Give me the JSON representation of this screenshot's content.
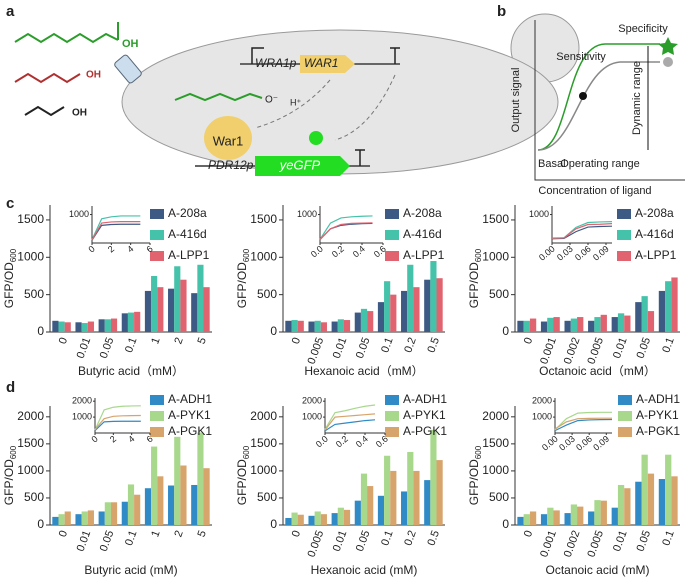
{
  "panels": {
    "a": "a",
    "b": "b",
    "c": "c",
    "d": "d"
  },
  "diagram_a": {
    "oh": [
      "OH",
      "OH",
      "OH"
    ],
    "wra1p": "WRA1p",
    "war1_gene": "WAR1",
    "war1_protein": "War1",
    "pdr12p": "PDR12p",
    "yegfp": "yeGFP",
    "h": "H⁺",
    "o_minus": "O⁻"
  },
  "diagram_b": {
    "y_label": "Output signal",
    "x_label": "Concentration of ligand",
    "sensitivity": "Sensitivity",
    "specificity": "Specificity",
    "dynamic_range": "Dynamic range",
    "basal": "Basal",
    "operating_range": "Operating range"
  },
  "chart_data": [
    {
      "type": "bar",
      "x_label": "Butyric acid（mM）",
      "y_label": "GFP/OD",
      "y_label_sub": "600",
      "categories": [
        "0",
        "0.01",
        "0.05",
        "0.1",
        "1",
        "2",
        "5"
      ],
      "series": [
        {
          "name": "A-208a",
          "color": "#3d5a85",
          "values": [
            150,
            130,
            170,
            250,
            550,
            580,
            520
          ]
        },
        {
          "name": "A-416d",
          "color": "#45c2aa",
          "values": [
            140,
            120,
            170,
            260,
            750,
            880,
            900
          ]
        },
        {
          "name": "A-LPP1",
          "color": "#e0636f",
          "values": [
            130,
            140,
            180,
            270,
            600,
            700,
            600
          ]
        }
      ],
      "ylim": [
        0,
        1700
      ],
      "yticks": [
        0,
        500,
        1000,
        1500
      ],
      "inset": {
        "type": "line",
        "x": [
          0,
          1,
          2,
          3,
          4,
          5
        ],
        "xlim": [
          0,
          6
        ],
        "xticks": [
          0,
          2,
          4,
          6
        ],
        "ylim": [
          0,
          1300
        ],
        "yticks": [
          1000
        ],
        "series": [
          {
            "color": "#3d5a85",
            "values": [
              100,
              620,
              650,
              660,
              660,
              660
            ]
          },
          {
            "color": "#45c2aa",
            "values": [
              120,
              850,
              920,
              950,
              950,
              950
            ]
          },
          {
            "color": "#e0636f",
            "values": [
              110,
              700,
              740,
              750,
              750,
              750
            ]
          }
        ]
      }
    },
    {
      "type": "bar",
      "x_label": "Hexanoic acid（mM）",
      "y_label": "GFP/OD",
      "y_label_sub": "600",
      "categories": [
        "0",
        "0.005",
        "0.01",
        "0.05",
        "0.1",
        "0.2",
        "0.5"
      ],
      "series": [
        {
          "name": "A-208a",
          "color": "#3d5a85",
          "values": [
            150,
            140,
            140,
            260,
            400,
            550,
            700
          ]
        },
        {
          "name": "A-416d",
          "color": "#45c2aa",
          "values": [
            160,
            150,
            170,
            310,
            680,
            900,
            950
          ]
        },
        {
          "name": "A-LPP1",
          "color": "#e0636f",
          "values": [
            150,
            130,
            160,
            280,
            500,
            600,
            720
          ]
        }
      ],
      "ylim": [
        0,
        1700
      ],
      "yticks": [
        0,
        500,
        1000,
        1500
      ],
      "inset": {
        "type": "line",
        "x": [
          0,
          0.1,
          0.2,
          0.3,
          0.4,
          0.5
        ],
        "xlim": [
          0,
          0.6
        ],
        "xticks": [
          {
            "value": 0,
            "label": "0.0"
          },
          0.2,
          0.4,
          0.6
        ],
        "ylim": [
          0,
          1300
        ],
        "yticks": [
          1000
        ],
        "series": [
          {
            "color": "#3d5a85",
            "values": [
              120,
              500,
              620,
              660,
              680,
              690
            ]
          },
          {
            "color": "#45c2aa",
            "values": [
              130,
              700,
              880,
              920,
              940,
              950
            ]
          },
          {
            "color": "#e0636f",
            "values": [
              120,
              500,
              650,
              690,
              700,
              710
            ]
          }
        ]
      }
    },
    {
      "type": "bar",
      "x_label": "Octanoic acid（mM）",
      "y_label": "GFP/OD",
      "y_label_sub": "600",
      "categories": [
        "0",
        "0.001",
        "0.002",
        "0.005",
        "0.01",
        "0.05",
        "0.1"
      ],
      "series": [
        {
          "name": "A-208a",
          "color": "#3d5a85",
          "values": [
            150,
            140,
            150,
            150,
            200,
            400,
            550
          ]
        },
        {
          "name": "A-416d",
          "color": "#45c2aa",
          "values": [
            150,
            190,
            180,
            200,
            250,
            480,
            680
          ]
        },
        {
          "name": "A-LPP1",
          "color": "#e0636f",
          "values": [
            180,
            200,
            200,
            230,
            220,
            280,
            730
          ]
        }
      ],
      "ylim": [
        0,
        1700
      ],
      "yticks": [
        0,
        500,
        1000,
        1500
      ],
      "inset": {
        "type": "line",
        "x": [
          0,
          0.02,
          0.04,
          0.06,
          0.08,
          0.1
        ],
        "xlim": [
          0,
          0.1
        ],
        "xticks": [
          {
            "value": 0,
            "label": "0.00"
          },
          0.03,
          0.06,
          0.09
        ],
        "ylim": [
          0,
          1300
        ],
        "yticks": [
          1000
        ],
        "series": [
          {
            "color": "#3d5a85",
            "values": [
              150,
              160,
              400,
              560,
              580,
              590
            ]
          },
          {
            "color": "#45c2aa",
            "values": [
              160,
              180,
              550,
              720,
              740,
              750
            ]
          },
          {
            "color": "#e0636f",
            "values": [
              170,
              180,
              500,
              650,
              660,
              680
            ]
          }
        ]
      }
    },
    {
      "type": "bar",
      "x_label": "Butyric acid (mM)",
      "y_label": "GFP/OD",
      "y_label_sub": "600",
      "categories": [
        "0",
        "0.01",
        "0.05",
        "0.1",
        "1",
        "2",
        "5"
      ],
      "series": [
        {
          "name": "A-ADH1",
          "color": "#2f8ac6",
          "values": [
            150,
            200,
            250,
            430,
            680,
            730,
            740
          ]
        },
        {
          "name": "A-PYK1",
          "color": "#a8d88c",
          "values": [
            200,
            250,
            420,
            750,
            1450,
            1630,
            1710
          ]
        },
        {
          "name": "A-PGK1",
          "color": "#d7a46c",
          "values": [
            250,
            270,
            420,
            560,
            900,
            1100,
            1050
          ]
        }
      ],
      "ylim": [
        0,
        2200
      ],
      "yticks": [
        0,
        500,
        1000,
        1500,
        2000
      ],
      "inset": {
        "type": "line",
        "x": [
          0,
          1,
          2,
          3,
          4,
          5
        ],
        "xlim": [
          0,
          6
        ],
        "xticks": [
          0,
          2,
          4,
          6
        ],
        "ylim": [
          0,
          2200
        ],
        "yticks": [
          1000,
          2000
        ],
        "series": [
          {
            "color": "#2f8ac6",
            "values": [
              150,
              700,
              730,
              740,
              740,
              740
            ]
          },
          {
            "color": "#a8d88c",
            "values": [
              200,
              1450,
              1620,
              1680,
              1700,
              1710
            ]
          },
          {
            "color": "#d7a46c",
            "values": [
              220,
              900,
              1050,
              1080,
              1090,
              1100
            ]
          }
        ]
      }
    },
    {
      "type": "bar",
      "x_label": "Hexanoic acid (mM)",
      "y_label": "GFP/OD",
      "y_label_sub": "600",
      "categories": [
        "0",
        "0.005",
        "0.01",
        "0.05",
        "0.1",
        "0.2",
        "0.5"
      ],
      "series": [
        {
          "name": "A-ADH1",
          "color": "#2f8ac6",
          "values": [
            130,
            170,
            220,
            450,
            540,
            620,
            830
          ]
        },
        {
          "name": "A-PYK1",
          "color": "#a8d88c",
          "values": [
            230,
            250,
            320,
            950,
            1280,
            1350,
            1760
          ]
        },
        {
          "name": "A-PGK1",
          "color": "#d7a46c",
          "values": [
            190,
            200,
            280,
            720,
            1000,
            1000,
            1200
          ]
        }
      ],
      "ylim": [
        0,
        2200
      ],
      "yticks": [
        0,
        500,
        1000,
        1500,
        2000
      ],
      "inset": {
        "type": "line",
        "x": [
          0,
          0.1,
          0.2,
          0.3,
          0.4,
          0.5
        ],
        "xlim": [
          0,
          0.6
        ],
        "xticks": [
          {
            "value": 0,
            "label": "0.0"
          },
          0.2,
          0.4,
          0.6
        ],
        "ylim": [
          0,
          2200
        ],
        "yticks": [
          1000,
          2000
        ],
        "series": [
          {
            "color": "#2f8ac6",
            "values": [
              130,
              540,
              620,
              700,
              780,
              830
            ]
          },
          {
            "color": "#a8d88c",
            "values": [
              230,
              1280,
              1400,
              1550,
              1680,
              1760
            ]
          },
          {
            "color": "#d7a46c",
            "values": [
              190,
              1000,
              1050,
              1100,
              1150,
              1200
            ]
          }
        ]
      }
    },
    {
      "type": "bar",
      "x_label": "Octanoic acid (mM)",
      "y_label": "GFP/OD",
      "y_label_sub": "600",
      "categories": [
        "0",
        "0.001",
        "0.002",
        "0.005",
        "0.01",
        "0.05",
        "0.1"
      ],
      "series": [
        {
          "name": "A-ADH1",
          "color": "#2f8ac6",
          "values": [
            150,
            200,
            220,
            250,
            320,
            800,
            850
          ]
        },
        {
          "name": "A-PYK1",
          "color": "#a8d88c",
          "values": [
            200,
            320,
            380,
            460,
            740,
            1300,
            1300
          ]
        },
        {
          "name": "A-PGK1",
          "color": "#d7a46c",
          "values": [
            250,
            270,
            340,
            450,
            680,
            950,
            900
          ]
        }
      ],
      "ylim": [
        0,
        2200
      ],
      "yticks": [
        0,
        500,
        1000,
        1500,
        2000
      ],
      "inset": {
        "type": "line",
        "x": [
          0,
          0.02,
          0.04,
          0.06,
          0.08,
          0.1
        ],
        "xlim": [
          0,
          0.1
        ],
        "xticks": [
          {
            "value": 0,
            "label": "0.00"
          },
          0.03,
          0.06,
          0.09
        ],
        "ylim": [
          0,
          2200
        ],
        "yticks": [
          1000,
          2000
        ],
        "series": [
          {
            "color": "#2f8ac6",
            "values": [
              150,
              500,
              780,
              820,
              840,
              850
            ]
          },
          {
            "color": "#a8d88c",
            "values": [
              200,
              900,
              1250,
              1290,
              1300,
              1300
            ]
          },
          {
            "color": "#d7a46c",
            "values": [
              250,
              700,
              900,
              920,
              930,
              930
            ]
          }
        ]
      }
    }
  ]
}
